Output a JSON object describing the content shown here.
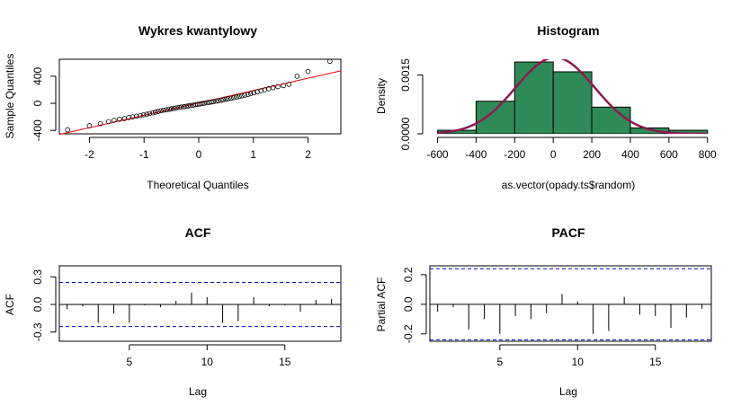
{
  "colors": {
    "qq_line": "#ff0000",
    "hist_fill": "#2e8b57",
    "density_curve": "#8b1a4e",
    "ci_line": "#0000cd",
    "ink": "#000000"
  },
  "chart_data": [
    {
      "type": "scatter",
      "title": "Wykres kwantylowy",
      "xlabel": "Theoretical Quantiles",
      "ylabel": "Sample Quantiles",
      "xlim": [
        -2.55,
        2.6
      ],
      "ylim": [
        -450,
        650
      ],
      "xticks": [
        -2,
        -1,
        0,
        1,
        2
      ],
      "xtick_labels": [
        "-2",
        "-1",
        "0",
        "1",
        "2"
      ],
      "yticks": [
        -400,
        0,
        400
      ],
      "ytick_labels": [
        "-400",
        "0",
        "400"
      ],
      "points": {
        "x": [
          -2.4,
          -2.0,
          -1.8,
          -1.65,
          -1.55,
          -1.45,
          -1.36,
          -1.28,
          -1.21,
          -1.14,
          -1.07,
          -1.01,
          -0.95,
          -0.9,
          -0.84,
          -0.79,
          -0.74,
          -0.69,
          -0.64,
          -0.59,
          -0.54,
          -0.5,
          -0.45,
          -0.41,
          -0.36,
          -0.32,
          -0.27,
          -0.23,
          -0.19,
          -0.15,
          -0.1,
          -0.06,
          -0.02,
          0.02,
          0.06,
          0.1,
          0.15,
          0.19,
          0.23,
          0.27,
          0.32,
          0.36,
          0.41,
          0.45,
          0.5,
          0.54,
          0.59,
          0.64,
          0.69,
          0.74,
          0.79,
          0.84,
          0.9,
          0.95,
          1.01,
          1.07,
          1.14,
          1.21,
          1.28,
          1.36,
          1.45,
          1.55,
          1.65,
          1.8,
          2.0,
          2.4
        ],
        "y": [
          -390,
          -330,
          -300,
          -270,
          -250,
          -235,
          -225,
          -210,
          -200,
          -190,
          -180,
          -170,
          -160,
          -150,
          -140,
          -130,
          -120,
          -110,
          -100,
          -95,
          -88,
          -82,
          -75,
          -68,
          -60,
          -55,
          -50,
          -44,
          -38,
          -32,
          -27,
          -20,
          -15,
          -10,
          -4,
          2,
          8,
          14,
          20,
          26,
          32,
          38,
          45,
          52,
          60,
          68,
          75,
          83,
          92,
          100,
          110,
          120,
          130,
          142,
          155,
          170,
          185,
          200,
          215,
          230,
          245,
          260,
          280,
          400,
          470,
          620
        ]
      },
      "reference_line": {
        "x": [
          -2.55,
          2.6
        ],
        "y": [
          -460,
          480
        ]
      }
    },
    {
      "type": "bar",
      "title": "Histogram",
      "xlabel": "as.vector(opady.ts$random)",
      "ylabel": "Density",
      "xlim": [
        -640,
        820
      ],
      "ylim": [
        0,
        0.0019
      ],
      "xticks": [
        -600,
        -400,
        -200,
        0,
        200,
        400,
        600,
        800
      ],
      "xtick_labels": [
        "-600",
        "-400",
        "-200",
        "0",
        "200",
        "400",
        "600",
        "800"
      ],
      "yticks": [
        0.0,
        0.0015
      ],
      "ytick_labels": [
        "0.0000",
        "0.0015"
      ],
      "bin_edges": [
        -600,
        -400,
        -200,
        0,
        200,
        400,
        600,
        800
      ],
      "values": [
        9e-05,
        0.00083,
        0.00183,
        0.00158,
        0.00068,
        0.00015,
        9e-05
      ],
      "density_curve": {
        "mean": 10,
        "sd": 205
      }
    },
    {
      "type": "bar",
      "title": "ACF",
      "xlabel": "Lag",
      "ylabel": "ACF",
      "xlim": [
        0.5,
        18.6
      ],
      "ylim": [
        -0.4,
        0.42
      ],
      "xticks": [
        5,
        10,
        15
      ],
      "xtick_labels": [
        "5",
        "10",
        "15"
      ],
      "yticks": [
        -0.3,
        0.0,
        0.3
      ],
      "ytick_labels": [
        "-0.3",
        "0.0",
        "0.3"
      ],
      "lags": [
        1,
        2,
        3,
        4,
        5,
        6,
        7,
        8,
        9,
        10,
        11,
        12,
        13,
        14,
        15,
        16,
        17,
        18
      ],
      "values": [
        -0.05,
        -0.02,
        -0.2,
        -0.1,
        -0.2,
        -0.01,
        -0.03,
        0.04,
        0.13,
        0.08,
        -0.2,
        -0.18,
        0.08,
        -0.02,
        -0.01,
        -0.08,
        0.05,
        0.06
      ],
      "confidence_limit": 0.24
    },
    {
      "type": "bar",
      "title": "PACF",
      "xlabel": "Lag",
      "ylabel": "Partial ACF",
      "xlim": [
        0.5,
        18.6
      ],
      "ylim": [
        -0.25,
        0.26
      ],
      "xticks": [
        5,
        10,
        15
      ],
      "xtick_labels": [
        "5",
        "10",
        "15"
      ],
      "yticks": [
        -0.2,
        0.0,
        0.2
      ],
      "ytick_labels": [
        "-0.2",
        "0.0",
        "0.2"
      ],
      "lags": [
        1,
        2,
        3,
        4,
        5,
        6,
        7,
        8,
        9,
        10,
        11,
        12,
        13,
        14,
        15,
        16,
        17,
        18
      ],
      "values": [
        -0.05,
        -0.02,
        -0.17,
        -0.1,
        -0.2,
        -0.08,
        -0.1,
        -0.06,
        0.07,
        0.02,
        -0.2,
        -0.18,
        0.05,
        -0.07,
        -0.08,
        -0.16,
        -0.09,
        -0.03
      ],
      "confidence_limit": 0.24
    }
  ]
}
